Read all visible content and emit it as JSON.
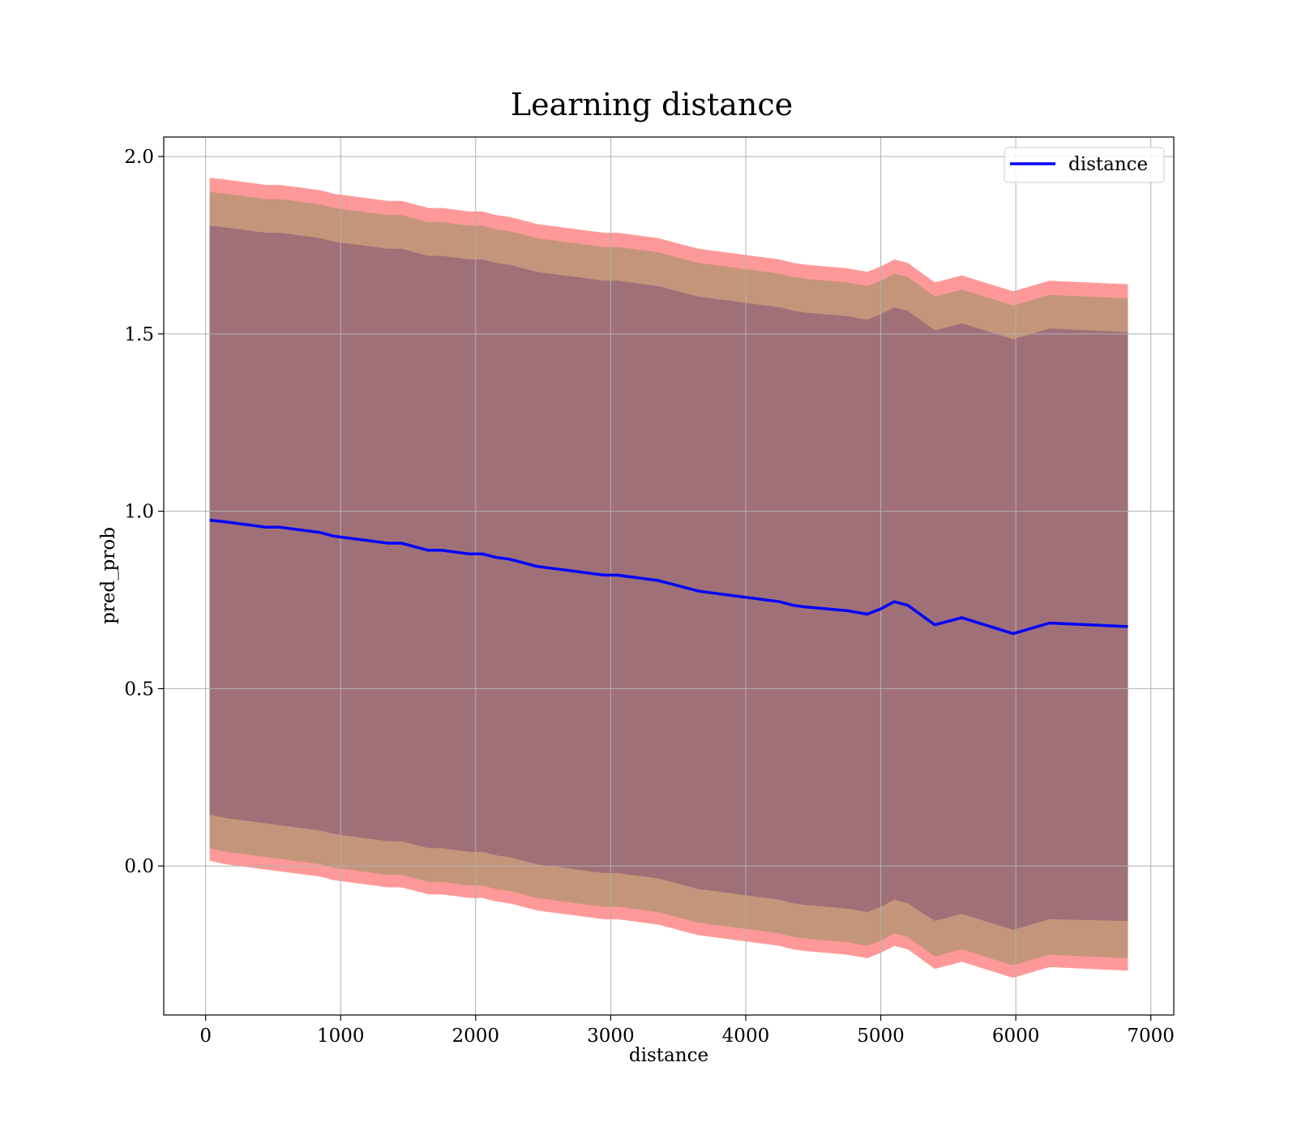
{
  "chart_data": {
    "type": "line",
    "title": "Learning distance",
    "xlabel": "distance",
    "ylabel": "pred_prob",
    "xlim": [
      -310,
      7170
    ],
    "ylim": [
      -0.42,
      2.055
    ],
    "xticks": [
      0,
      1000,
      2000,
      3000,
      4000,
      5000,
      6000,
      7000
    ],
    "yticks": [
      0.0,
      0.5,
      1.0,
      1.5,
      2.0
    ],
    "xtick_labels": [
      "0",
      "1000",
      "2000",
      "3000",
      "4000",
      "5000",
      "6000",
      "7000"
    ],
    "ytick_labels": [
      "0.0",
      "0.5",
      "1.0",
      "1.5",
      "2.0"
    ],
    "grid": true,
    "legend": {
      "placement": "top-right",
      "entries": [
        "distance"
      ]
    },
    "colors": {
      "line": "#0000ff",
      "band_outer": "#ff9999",
      "band_middle": "#c4957a",
      "band_inner": "#a07079",
      "grid": "#b0b0b0"
    },
    "series": [
      {
        "name": "distance",
        "x": [
          30,
          150,
          250,
          350,
          450,
          550,
          650,
          750,
          850,
          950,
          1050,
          1150,
          1250,
          1350,
          1450,
          1550,
          1650,
          1750,
          1850,
          1950,
          2050,
          2150,
          2250,
          2350,
          2450,
          2550,
          2650,
          2750,
          2850,
          2950,
          3050,
          3150,
          3250,
          3350,
          3450,
          3550,
          3650,
          3750,
          3850,
          3950,
          4050,
          4150,
          4250,
          4350,
          4450,
          4600,
          4750,
          4900,
          5000,
          5100,
          5200,
          5400,
          5600,
          5980,
          6250,
          6830
        ],
        "y": [
          0.975,
          0.97,
          0.965,
          0.96,
          0.955,
          0.955,
          0.95,
          0.945,
          0.94,
          0.93,
          0.925,
          0.92,
          0.915,
          0.91,
          0.91,
          0.9,
          0.89,
          0.89,
          0.885,
          0.88,
          0.88,
          0.87,
          0.865,
          0.855,
          0.845,
          0.84,
          0.835,
          0.83,
          0.825,
          0.82,
          0.82,
          0.815,
          0.81,
          0.805,
          0.795,
          0.785,
          0.775,
          0.77,
          0.765,
          0.76,
          0.755,
          0.75,
          0.745,
          0.735,
          0.73,
          0.725,
          0.72,
          0.71,
          0.725,
          0.745,
          0.735,
          0.68,
          0.7,
          0.655,
          0.685,
          0.675
        ]
      }
    ],
    "bands": [
      {
        "name": "outer",
        "lower": [
          0.015,
          0.005,
          0.0,
          -0.005,
          -0.01,
          -0.015,
          -0.02,
          -0.025,
          -0.03,
          -0.04,
          -0.045,
          -0.05,
          -0.055,
          -0.06,
          -0.06,
          -0.07,
          -0.08,
          -0.08,
          -0.085,
          -0.09,
          -0.09,
          -0.1,
          -0.105,
          -0.115,
          -0.125,
          -0.13,
          -0.135,
          -0.14,
          -0.145,
          -0.15,
          -0.15,
          -0.155,
          -0.16,
          -0.165,
          -0.175,
          -0.185,
          -0.195,
          -0.2,
          -0.205,
          -0.21,
          -0.215,
          -0.22,
          -0.225,
          -0.235,
          -0.24,
          -0.245,
          -0.25,
          -0.26,
          -0.245,
          -0.225,
          -0.235,
          -0.29,
          -0.27,
          -0.315,
          -0.285,
          -0.295
        ],
        "upper": [
          1.94,
          1.935,
          1.93,
          1.925,
          1.92,
          1.92,
          1.915,
          1.91,
          1.905,
          1.895,
          1.89,
          1.885,
          1.88,
          1.875,
          1.875,
          1.865,
          1.855,
          1.855,
          1.85,
          1.845,
          1.845,
          1.835,
          1.83,
          1.82,
          1.81,
          1.805,
          1.8,
          1.795,
          1.79,
          1.785,
          1.785,
          1.78,
          1.775,
          1.77,
          1.76,
          1.75,
          1.74,
          1.735,
          1.73,
          1.725,
          1.72,
          1.715,
          1.71,
          1.7,
          1.695,
          1.69,
          1.685,
          1.675,
          1.69,
          1.71,
          1.7,
          1.645,
          1.665,
          1.62,
          1.65,
          1.64
        ]
      },
      {
        "name": "middle",
        "lower": [
          0.05,
          0.04,
          0.035,
          0.03,
          0.025,
          0.02,
          0.015,
          0.01,
          0.005,
          -0.005,
          -0.01,
          -0.015,
          -0.02,
          -0.025,
          -0.025,
          -0.035,
          -0.045,
          -0.045,
          -0.05,
          -0.055,
          -0.055,
          -0.065,
          -0.07,
          -0.08,
          -0.09,
          -0.095,
          -0.1,
          -0.105,
          -0.11,
          -0.115,
          -0.115,
          -0.12,
          -0.125,
          -0.13,
          -0.14,
          -0.15,
          -0.16,
          -0.165,
          -0.17,
          -0.175,
          -0.18,
          -0.185,
          -0.19,
          -0.2,
          -0.205,
          -0.21,
          -0.215,
          -0.225,
          -0.21,
          -0.19,
          -0.2,
          -0.255,
          -0.235,
          -0.28,
          -0.25,
          -0.26
        ],
        "upper": [
          1.9,
          1.895,
          1.89,
          1.885,
          1.88,
          1.88,
          1.875,
          1.87,
          1.865,
          1.855,
          1.85,
          1.845,
          1.84,
          1.835,
          1.835,
          1.825,
          1.815,
          1.815,
          1.81,
          1.805,
          1.805,
          1.795,
          1.79,
          1.78,
          1.77,
          1.765,
          1.76,
          1.755,
          1.75,
          1.745,
          1.745,
          1.74,
          1.735,
          1.73,
          1.72,
          1.71,
          1.7,
          1.695,
          1.69,
          1.685,
          1.68,
          1.675,
          1.67,
          1.66,
          1.655,
          1.65,
          1.645,
          1.635,
          1.65,
          1.67,
          1.66,
          1.605,
          1.625,
          1.58,
          1.61,
          1.6
        ]
      },
      {
        "name": "inner",
        "lower": [
          0.145,
          0.135,
          0.13,
          0.125,
          0.12,
          0.115,
          0.11,
          0.105,
          0.1,
          0.09,
          0.085,
          0.08,
          0.075,
          0.07,
          0.07,
          0.06,
          0.05,
          0.05,
          0.045,
          0.04,
          0.04,
          0.03,
          0.025,
          0.015,
          0.005,
          0.0,
          -0.005,
          -0.01,
          -0.015,
          -0.02,
          -0.02,
          -0.025,
          -0.03,
          -0.035,
          -0.045,
          -0.055,
          -0.065,
          -0.07,
          -0.075,
          -0.08,
          -0.085,
          -0.09,
          -0.095,
          -0.105,
          -0.11,
          -0.115,
          -0.12,
          -0.13,
          -0.115,
          -0.095,
          -0.105,
          -0.155,
          -0.135,
          -0.18,
          -0.15,
          -0.155
        ],
        "upper": [
          1.805,
          1.8,
          1.795,
          1.79,
          1.785,
          1.785,
          1.78,
          1.775,
          1.77,
          1.76,
          1.755,
          1.75,
          1.745,
          1.74,
          1.74,
          1.73,
          1.72,
          1.72,
          1.715,
          1.71,
          1.71,
          1.7,
          1.695,
          1.685,
          1.675,
          1.67,
          1.665,
          1.66,
          1.655,
          1.65,
          1.65,
          1.645,
          1.64,
          1.635,
          1.625,
          1.615,
          1.605,
          1.6,
          1.595,
          1.59,
          1.585,
          1.58,
          1.575,
          1.565,
          1.56,
          1.555,
          1.55,
          1.54,
          1.555,
          1.575,
          1.565,
          1.51,
          1.53,
          1.485,
          1.515,
          1.505
        ]
      }
    ]
  }
}
